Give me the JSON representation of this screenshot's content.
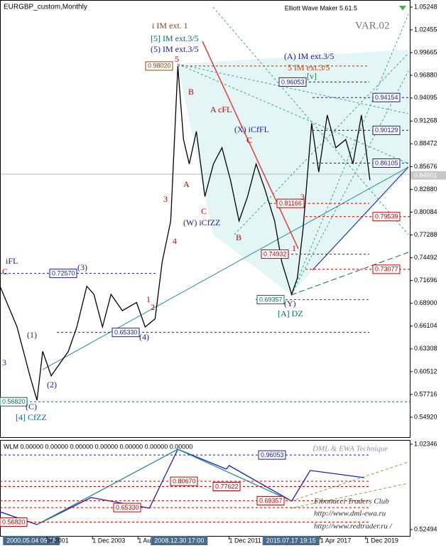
{
  "chart_data": [
    {
      "type": "line",
      "title": "EURGBP_custom,Monthly",
      "indicator_name": "Elliott Wave Maker 5.61.5",
      "subtitle": "VAR.02",
      "color": "#000000",
      "x": [
        "1998-07-01",
        "1999-07-01",
        "2000-04-01",
        "2000-09-01",
        "2001-01-01",
        "2001-07-01",
        "2002-07-01",
        "2003-01-01",
        "2003-08-01",
        "2004-01-01",
        "2004-07-01",
        "2005-01-01",
        "2005-09-01",
        "2006-07-01",
        "2007-01-01",
        "2007-08-01",
        "2008-01-01",
        "2008-07-01",
        "2008-12-01",
        "2009-04-01",
        "2009-08-01",
        "2010-01-01",
        "2010-07-01",
        "2011-01-01",
        "2011-07-01",
        "2012-01-01",
        "2012-07-01",
        "2013-01-01",
        "2013-07-01",
        "2014-01-01",
        "2014-08-01",
        "2015-01-01",
        "2015-08-01",
        "2015-12-01",
        "2016-04-01",
        "2016-10-01",
        "2017-03-01",
        "2017-09-01",
        "2018-03-01",
        "2018-10-01",
        "2019-03-01",
        "2019-09-01",
        "2020-03-01"
      ],
      "values": [
        0.71,
        0.66,
        0.6,
        0.57,
        0.63,
        0.6,
        0.63,
        0.66,
        0.71,
        0.7,
        0.66,
        0.7,
        0.68,
        0.69,
        0.66,
        0.67,
        0.74,
        0.79,
        0.98,
        0.89,
        0.86,
        0.9,
        0.82,
        0.86,
        0.88,
        0.84,
        0.79,
        0.82,
        0.86,
        0.83,
        0.79,
        0.74,
        0.7,
        0.72,
        0.78,
        0.91,
        0.85,
        0.92,
        0.88,
        0.89,
        0.86,
        0.92,
        0.84
      ],
      "xlim": [
        "1998-07-01",
        "2022-07-01"
      ],
      "ylim": [
        0.5248,
        1.0612
      ],
      "yticks": [
        1.05248,
        1.02455,
        0.99665,
        {
          "value": 0.9688,
          "label": "0.96880"
        },
        0.94095,
        0.91268,
        0.88472,
        0.85676,
        {
          "value": 0.8288,
          "label": "0.82880"
        },
        0.80084,
        0.77288,
        0.74492,
        0.71696,
        {
          "value": 0.689,
          "label": "0.68900"
        },
        0.66104,
        0.63308,
        0.60512,
        0.57716,
        {
          "value": 0.5492,
          "label": "0.54920"
        }
      ],
      "current_price": {
        "value": 0.84601,
        "label": "0.84601"
      },
      "levels": [
        {
          "value": 0.9802,
          "label": "0.98020",
          "color": "#8b4513"
        },
        {
          "value": 0.96053,
          "label": "0.96053",
          "color": "#1a1aa0"
        },
        {
          "value": 0.94154,
          "label": "0.94154",
          "color": "#1a1aa0"
        },
        {
          "value": 0.90129,
          "label": "0.90129",
          "color": "#1a1aa0"
        },
        {
          "value": 0.86105,
          "label": "0.86105",
          "color": "#1a1aa0"
        },
        {
          "value": 0.81166,
          "label": "0.81166",
          "color": "#c00000"
        },
        {
          "value": 0.79539,
          "label": "0.79539",
          "color": "#c00000"
        },
        {
          "value": 0.74932,
          "label": "0.74932",
          "color": "#c00000"
        },
        {
          "value": 0.73077,
          "label": "0.73077",
          "color": "#c00000"
        },
        {
          "value": 0.7257,
          "label": "0.72570",
          "color": "#1a1aa0"
        },
        {
          "value": 0.69357,
          "label": "0.69357",
          "color": "#007070"
        },
        {
          "value": 0.6533,
          "label": "0.65330",
          "color": "#1a1aa0"
        },
        {
          "value": 0.5682,
          "label": "0.56820",
          "color": "#007070"
        }
      ],
      "annotations": [
        {
          "text": "i IM ext. 1",
          "color": "#8b4513"
        },
        {
          "text": "[5] IM ext.3/5",
          "color": "#007070"
        },
        {
          "text": "(5) IM ext.3/5",
          "color": "#1a1aa0"
        },
        {
          "text": "5",
          "color": "#c00000"
        },
        {
          "text": "(A) IM ext.3/5",
          "color": "#1a1aa0"
        },
        {
          "text": "5 IM ext.3/5",
          "color": "#c04000"
        },
        {
          "text": "A cFL",
          "color": "#c00000"
        },
        {
          "text": "(X) iCfFL",
          "color": "#1a1aa0"
        },
        {
          "text": "(W) iCfZZ",
          "color": "#1a1aa0"
        },
        {
          "text": "B",
          "color": "#c00000"
        },
        {
          "text": "A",
          "color": "#c00000"
        },
        {
          "text": "C",
          "color": "#c00000"
        },
        {
          "text": "B",
          "color": "#c00000"
        },
        {
          "text": "C",
          "color": "#c00000"
        },
        {
          "text": "3",
          "color": "#c00000"
        },
        {
          "text": "4",
          "color": "#c00000"
        },
        {
          "text": "1",
          "color": "#c00000"
        },
        {
          "text": "2",
          "color": "#c00000"
        },
        {
          "text": "(3)",
          "color": "#1a1aa0"
        },
        {
          "text": "(4)",
          "color": "#1a1aa0"
        },
        {
          "text": "(1)",
          "color": "#1a1aa0"
        },
        {
          "text": "(2)",
          "color": "#1a1aa0"
        },
        {
          "text": "(C)",
          "color": "#1a1aa0"
        },
        {
          "text": "[4] CfZZ",
          "color": "#007070"
        },
        {
          "text": "iFL",
          "color": "#1a1aa0"
        },
        {
          "text": "C",
          "color": "#c00000"
        },
        {
          "text": "3",
          "color": "#1a1aa0"
        },
        {
          "text": "(Y)",
          "color": "#1a1aa0"
        },
        {
          "text": "[A] DZ",
          "color": "#007070"
        },
        {
          "text": "3",
          "color": "#c00000"
        },
        {
          "text": "1",
          "color": "#c00000"
        },
        {
          "text": "[v]",
          "color": "#208020"
        }
      ]
    },
    {
      "type": "line",
      "title": "WLM 0.00000 0.00000 0.00000 0.00000 0.00000 0.00000 0.00000",
      "series": [
        {
          "color": "#1a1acc",
          "x": [
            "1998-07-01",
            "2000-09-01",
            "2003-11-01",
            "2007-04-01",
            "2008-12-01",
            "2011-10-01",
            "2011-12-01",
            "2015-08-01",
            "2016-09-01",
            "2019-11-01"
          ],
          "values": [
            0.629,
            0.554,
            0.712,
            0.65,
            0.994,
            0.878,
            0.899,
            0.691,
            0.87,
            0.828
          ]
        },
        {
          "color": "#209090",
          "x": [
            "2000-09-01",
            "2008-12-01",
            "2015-08-01"
          ],
          "values": [
            0.554,
            0.994,
            0.691
          ]
        }
      ],
      "ylim": [
        0.4834,
        1.0442
      ],
      "yticks": [
        1.02346,
        0.52494
      ],
      "levels": [
        {
          "value": 0.96053,
          "label": "0.96053",
          "color": "#1a1aa0"
        },
        {
          "value": 0.8067,
          "label": "0.80670",
          "color": "#c00000"
        },
        {
          "value": 0.77622,
          "label": "0.77622",
          "color": "#c00000"
        },
        {
          "value": 0.6533,
          "label": "0.65330",
          "color": "#c00000"
        },
        {
          "value": 0.69357,
          "label": "0.69357",
          "color": "#c00000"
        },
        {
          "value": 0.5682,
          "label": "0.56820",
          "color": "#c00000"
        }
      ],
      "xticks": [
        {
          "value": "2000-05-04",
          "label": "2000.05.04 09:15"
        },
        {
          "value": "2001-04-01",
          "label": "or 2001"
        },
        {
          "value": "2003-12-01",
          "label": "1 Dec 2003"
        },
        {
          "value": "2006-08-01",
          "label": "1 Au"
        },
        {
          "value": "2008-12-30",
          "label": "2008.12.30 17:00"
        },
        {
          "value": "2011-12-01",
          "label": "1 Dec 2011"
        },
        {
          "value": "2015-07-17",
          "label": "2015.07.17 19:15"
        },
        {
          "value": "2017-04-01",
          "label": "1 Apr 2017"
        },
        {
          "value": "2019-12-01",
          "label": "1 Dec 2019"
        }
      ],
      "xtick_highlight": [
        true,
        false,
        false,
        false,
        true,
        false,
        true,
        false,
        false
      ],
      "annotations": [
        {
          "text": "DML & EWA Technique",
          "color": "#9090a0"
        },
        {
          "text": "Fibonacci   Traders   Club",
          "color": "#303030"
        },
        {
          "text": "http://www.dml-ewa.ru",
          "color": "#303030"
        },
        {
          "text": "http://www.redtrader.ru /",
          "color": "#303030"
        }
      ]
    }
  ]
}
